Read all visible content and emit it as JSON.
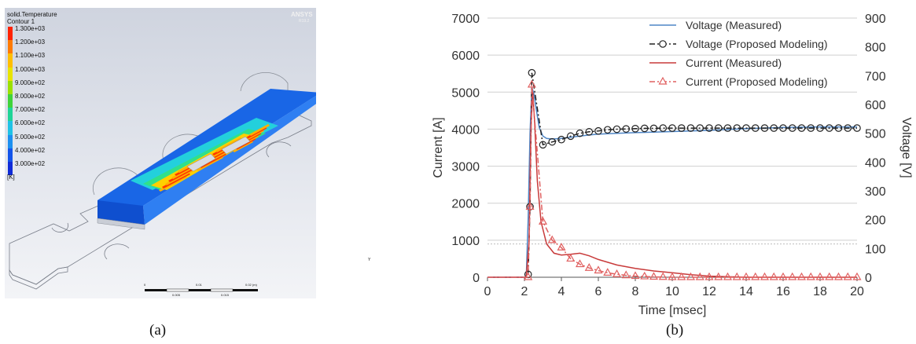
{
  "panel_a": {
    "caption": "(a)",
    "logo": "ANSYS",
    "version": "R19.2",
    "legend": {
      "title_lines": [
        "solid.Temperature",
        "Contour 1"
      ],
      "unit": "[K]",
      "labels": [
        "1.300e+03",
        "1.200e+03",
        "1.100e+03",
        "1.000e+03",
        "9.000e+02",
        "8.000e+02",
        "7.000e+02",
        "6.000e+02",
        "5.000e+02",
        "4.000e+02",
        "3.000e+02"
      ],
      "colors": [
        "#ff2200",
        "#ff7a00",
        "#ffbe00",
        "#e8e400",
        "#9be000",
        "#3fd33a",
        "#1fd497",
        "#1fc2e6",
        "#1b8ff0",
        "#1253ea",
        "#0f2bd8"
      ]
    },
    "scalebar_labels": [
      "0",
      "0.01",
      "0.02 (m)",
      "0.005",
      "0.015"
    ],
    "axis_triad": [
      "X",
      "Y",
      "Z"
    ]
  },
  "panel_b": {
    "caption": "(b)",
    "chart_data": {
      "type": "line",
      "xlabel": "Time [msec]",
      "ylabel_left": "Current [A]",
      "ylabel_right": "Voltage [V]",
      "xlim": [
        0,
        20
      ],
      "ylim_left": [
        0,
        7000
      ],
      "ylim_right": [
        0,
        900
      ],
      "x_ticks": [
        "0",
        "2",
        "4",
        "6",
        "8",
        "10",
        "12",
        "14",
        "16",
        "18",
        "20"
      ],
      "y_left_ticks": [
        "0",
        "1000",
        "2000",
        "3000",
        "4000",
        "5000",
        "6000",
        "7000"
      ],
      "y_right_ticks": [
        "0",
        "100",
        "200",
        "300",
        "400",
        "500",
        "600",
        "700",
        "800",
        "900"
      ],
      "grid": "horizontal",
      "legend_position": "top-right",
      "series": [
        {
          "name": "Voltage (Measured)",
          "axis": "right",
          "style": "solid",
          "color": "#4f86c6",
          "marker": "none",
          "x": [
            0,
            2.1,
            2.2,
            2.3,
            2.4,
            2.5,
            2.6,
            2.7,
            2.8,
            3.0,
            3.2,
            3.5,
            4.0,
            4.5,
            5.0,
            5.5,
            6.0,
            7.0,
            8.0,
            9.0,
            10.0,
            12.0,
            14.0,
            16.0,
            18.0,
            20.0
          ],
          "y": [
            0,
            0,
            200,
            500,
            660,
            640,
            600,
            560,
            520,
            490,
            482,
            480,
            482,
            486,
            490,
            494,
            497,
            500,
            502,
            504,
            506,
            510,
            516,
            520,
            522,
            522
          ]
        },
        {
          "name": "Voltage (Proposed Modeling)",
          "axis": "right",
          "style": "dashdot",
          "color": "#222222",
          "marker": "circle",
          "x": [
            2.2,
            2.3,
            2.4,
            3.0,
            3.5,
            4.0,
            4.5,
            5.0,
            5.5,
            6.0,
            6.5,
            7.0,
            7.5,
            8.0,
            8.5,
            9.0,
            9.5,
            10.0,
            10.5,
            11.0,
            11.5,
            12.0,
            12.5,
            13.0,
            13.5,
            14.0,
            14.5,
            15.0,
            15.5,
            16.0,
            16.5,
            17.0,
            17.5,
            18.0,
            18.5,
            19.0,
            19.5,
            20.0
          ],
          "y": [
            10,
            245,
            710,
            460,
            470,
            478,
            490,
            500,
            505,
            508,
            512,
            514,
            515,
            516,
            517,
            517,
            518,
            518,
            518,
            518,
            518,
            518,
            518,
            518,
            518,
            518,
            518,
            518,
            518,
            518,
            518,
            518,
            518,
            518,
            518,
            518,
            518,
            518
          ]
        },
        {
          "name": "Current (Measured)",
          "axis": "left",
          "style": "solid",
          "color": "#c83a3a",
          "marker": "none",
          "x": [
            0,
            2.1,
            2.25,
            2.35,
            2.45,
            2.55,
            2.7,
            2.9,
            3.2,
            3.6,
            4.0,
            4.5,
            5.0,
            5.5,
            6.0,
            7.0,
            8.0,
            9.0,
            10.0,
            11.0,
            12.0,
            14.0,
            16.0,
            18.0,
            20.0
          ],
          "y": [
            0,
            0,
            1000,
            4000,
            5000,
            4200,
            2600,
            1500,
            900,
            650,
            600,
            620,
            650,
            580,
            480,
            330,
            240,
            170,
            120,
            70,
            30,
            0,
            0,
            0,
            0
          ]
        },
        {
          "name": "Current (Proposed Modeling)",
          "axis": "left",
          "style": "dashdot",
          "color": "#e06060",
          "marker": "triangle",
          "x": [
            0,
            2.2,
            2.3,
            2.4,
            3.0,
            3.5,
            4.0,
            4.5,
            5.0,
            5.5,
            6.0,
            6.5,
            7.0,
            7.5,
            8.0,
            8.5,
            9.0,
            9.5,
            10.0,
            10.5,
            11.0,
            11.5,
            12.0,
            12.5,
            13.0,
            13.5,
            14.0,
            14.5,
            15.0,
            15.5,
            16.0,
            16.5,
            17.0,
            17.5,
            18.0,
            18.5,
            19.0,
            19.5,
            20.0
          ],
          "y": [
            0,
            0,
            1900,
            5200,
            1500,
            1000,
            800,
            500,
            350,
            250,
            180,
            120,
            80,
            50,
            30,
            20,
            10,
            5,
            0,
            0,
            0,
            0,
            0,
            0,
            0,
            0,
            0,
            0,
            0,
            0,
            0,
            0,
            0,
            0,
            0,
            0,
            0,
            0,
            0
          ]
        }
      ]
    }
  }
}
